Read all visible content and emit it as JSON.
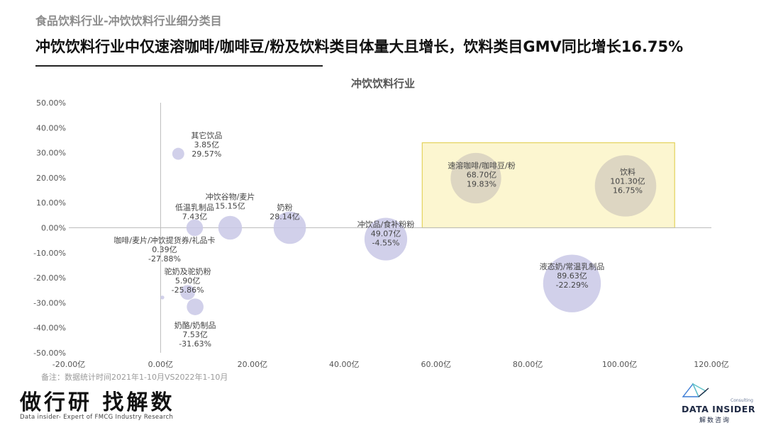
{
  "header": {
    "kicker": "食品饮料行业-冲饮饮料行业细分类目",
    "headline": "冲饮饮料行业中仅速溶咖啡/咖啡豆/粉及饮料类目体量大且增长，饮料类目GMV同比增长16.75%"
  },
  "footnote": "备注：数据统计时间2021年1-10月VS2022年1-10月",
  "brand": {
    "slogan": "做行研 找解数",
    "sub": "Data insider- Expert of FMCG Industry Research",
    "logo_name": "DATA INSIDER",
    "logo_tag": "Consulting",
    "logo_cn": "解数咨询"
  },
  "colors": {
    "bubble": "#c9c8e6",
    "highlight_bubble": "#d9d3c0",
    "highlight_box_fill": "#fbf4c8",
    "highlight_box_stroke": "#e3d25b",
    "axis": "#bdbdbd"
  },
  "chart_data": {
    "type": "bubble",
    "title": "冲饮饮料行业",
    "x_tick_labels": [
      "-20.00亿",
      "0.00亿",
      "20.00亿",
      "40.00亿",
      "60.00亿",
      "80.00亿",
      "100.00亿",
      "120.00亿"
    ],
    "y_tick_labels": [
      "50.00%",
      "40.00%",
      "30.00%",
      "20.00%",
      "10.00%",
      "0.00%",
      "-10.00%",
      "-20.00%",
      "-30.00%",
      "-40.00%",
      "-50.00%"
    ],
    "xlim": [
      -20,
      120
    ],
    "ylim": [
      -50,
      50
    ],
    "x_ticks": [
      -20,
      0,
      20,
      40,
      60,
      80,
      100,
      120
    ],
    "y_ticks": [
      50,
      40,
      30,
      20,
      10,
      0,
      -10,
      -20,
      -30,
      -40,
      -50
    ],
    "highlight_region": {
      "x": [
        57,
        112
      ],
      "y": [
        0,
        34
      ]
    },
    "points": [
      {
        "name": "其它饮品",
        "gmv_label": "3.85亿",
        "growth_label": "29.57%",
        "x": 3.85,
        "y": 29.57
      },
      {
        "name": "冲饮谷物/麦片",
        "gmv_label": "15.15亿",
        "growth_label": "",
        "x": 15.15,
        "y": 0
      },
      {
        "name": "低温乳制品",
        "gmv_label": "7.43亿",
        "growth_label": "",
        "x": 7.43,
        "y": 0
      },
      {
        "name": "奶粉",
        "gmv_label": "28.14亿",
        "growth_label": "",
        "x": 28.14,
        "y": 0
      },
      {
        "name": "冲饮品/食补粉粉",
        "gmv_label": "49.07亿",
        "growth_label": "-4.55%",
        "x": 49.07,
        "y": -4.55
      },
      {
        "name": "速溶咖啡/咖啡豆/粉",
        "gmv_label": "68.70亿",
        "growth_label": "19.83%",
        "x": 68.7,
        "y": 19.83
      },
      {
        "name": "饮料",
        "gmv_label": "101.30亿",
        "growth_label": "16.75%",
        "x": 101.3,
        "y": 16.75
      },
      {
        "name": "咖啡/麦片/冲饮提货券/礼品卡",
        "gmv_label": "0.39亿",
        "growth_label": "-27.88%",
        "x": 0.39,
        "y": -27.88
      },
      {
        "name": "驼奶及驼奶粉",
        "gmv_label": "5.90亿",
        "growth_label": "-25.86%",
        "x": 5.9,
        "y": -25.86
      },
      {
        "name": "液态奶/常温乳制品",
        "gmv_label": "89.63亿",
        "growth_label": "-22.29%",
        "x": 89.63,
        "y": -22.29
      },
      {
        "name": "奶酪/奶制品",
        "gmv_label": "7.53亿",
        "growth_label": "-31.63%",
        "x": 7.53,
        "y": -31.63
      }
    ]
  }
}
